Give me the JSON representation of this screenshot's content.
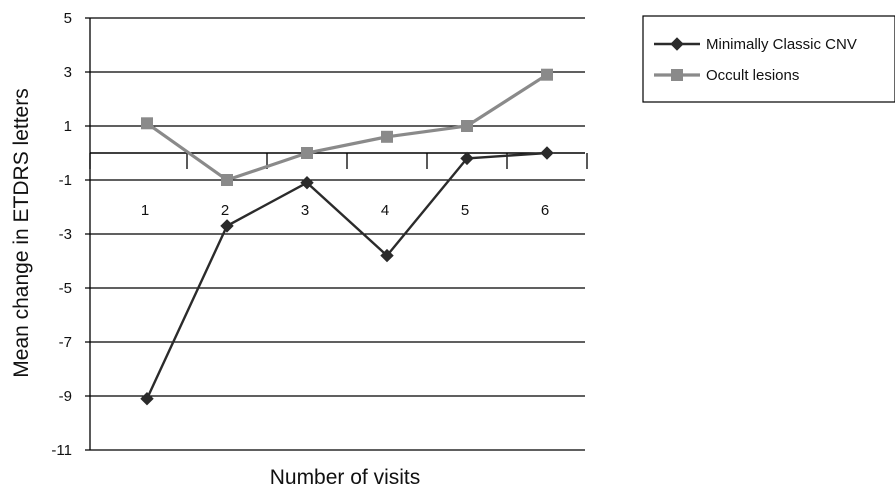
{
  "chart_data": {
    "type": "line",
    "xlabel": "Number of visits",
    "ylabel": "Mean change in ETDRS letters",
    "ylim": [
      -11,
      5
    ],
    "yticks": [
      5,
      3,
      1,
      -1,
      -3,
      -5,
      -7,
      -9,
      -11
    ],
    "categories": [
      "1",
      "2",
      "3",
      "4",
      "5",
      "6"
    ],
    "grid": "horizontal",
    "legend_position": "top-right",
    "series": [
      {
        "name": "Minimally Classic CNV",
        "marker": "diamond",
        "color": "#2b2b2b",
        "values": [
          -9.1,
          -2.7,
          -1.1,
          -3.8,
          -0.2,
          0.0
        ]
      },
      {
        "name": "Occult lesions",
        "marker": "square",
        "color": "#8a8a8a",
        "values": [
          1.1,
          -1.0,
          0.0,
          0.6,
          1.0,
          2.9
        ]
      }
    ]
  }
}
